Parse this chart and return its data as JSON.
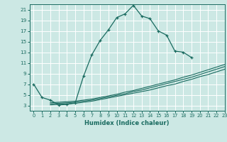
{
  "xlabel": "Humidex (Indice chaleur)",
  "bg_color": "#cce8e4",
  "line_color": "#1a6b60",
  "grid_color": "#b0d8d0",
  "xmin": -0.5,
  "xmax": 23,
  "ymin": 2,
  "ymax": 22,
  "yticks": [
    3,
    5,
    7,
    9,
    11,
    13,
    15,
    17,
    19,
    21
  ],
  "xticks": [
    0,
    1,
    2,
    3,
    4,
    5,
    6,
    7,
    8,
    9,
    10,
    11,
    12,
    13,
    14,
    15,
    16,
    17,
    18,
    19,
    20,
    21,
    22,
    23
  ],
  "curve1_x": [
    0,
    1,
    2,
    3,
    4,
    5,
    6,
    7,
    8,
    9,
    10,
    11,
    12,
    13,
    14,
    15,
    16,
    17,
    18,
    19
  ],
  "curve1_y": [
    7.0,
    4.5,
    4.0,
    3.1,
    3.2,
    3.5,
    8.5,
    12.5,
    15.2,
    17.2,
    19.5,
    20.2,
    21.8,
    19.8,
    19.3,
    17.0,
    16.2,
    13.2,
    13.0,
    12.0
  ],
  "curve2_x": [
    2,
    3,
    4,
    5,
    6,
    7,
    8,
    9,
    10,
    11,
    12,
    13,
    14,
    15,
    16,
    17,
    18,
    19,
    20,
    21,
    22,
    23
  ],
  "curve2_y": [
    3.5,
    3.6,
    3.7,
    3.8,
    4.0,
    4.2,
    4.5,
    4.8,
    5.1,
    5.5,
    5.8,
    6.2,
    6.6,
    7.0,
    7.4,
    7.8,
    8.3,
    8.7,
    9.2,
    9.7,
    10.2,
    10.7
  ],
  "curve3_x": [
    2,
    3,
    4,
    5,
    6,
    7,
    8,
    9,
    10,
    11,
    12,
    13,
    14,
    15,
    16,
    17,
    18,
    19,
    20,
    21,
    22,
    23
  ],
  "curve3_y": [
    3.3,
    3.4,
    3.5,
    3.6,
    3.8,
    4.0,
    4.3,
    4.6,
    4.9,
    5.2,
    5.6,
    5.9,
    6.3,
    6.7,
    7.1,
    7.5,
    7.9,
    8.3,
    8.8,
    9.3,
    9.8,
    10.3
  ],
  "curve4_x": [
    2,
    3,
    4,
    5,
    6,
    7,
    8,
    9,
    10,
    11,
    12,
    13,
    14,
    15,
    16,
    17,
    18,
    19,
    20,
    21,
    22,
    23
  ],
  "curve4_y": [
    3.1,
    3.2,
    3.3,
    3.4,
    3.6,
    3.8,
    4.1,
    4.4,
    4.7,
    5.0,
    5.3,
    5.6,
    5.9,
    6.3,
    6.7,
    7.0,
    7.5,
    7.9,
    8.4,
    8.8,
    9.3,
    9.8
  ]
}
